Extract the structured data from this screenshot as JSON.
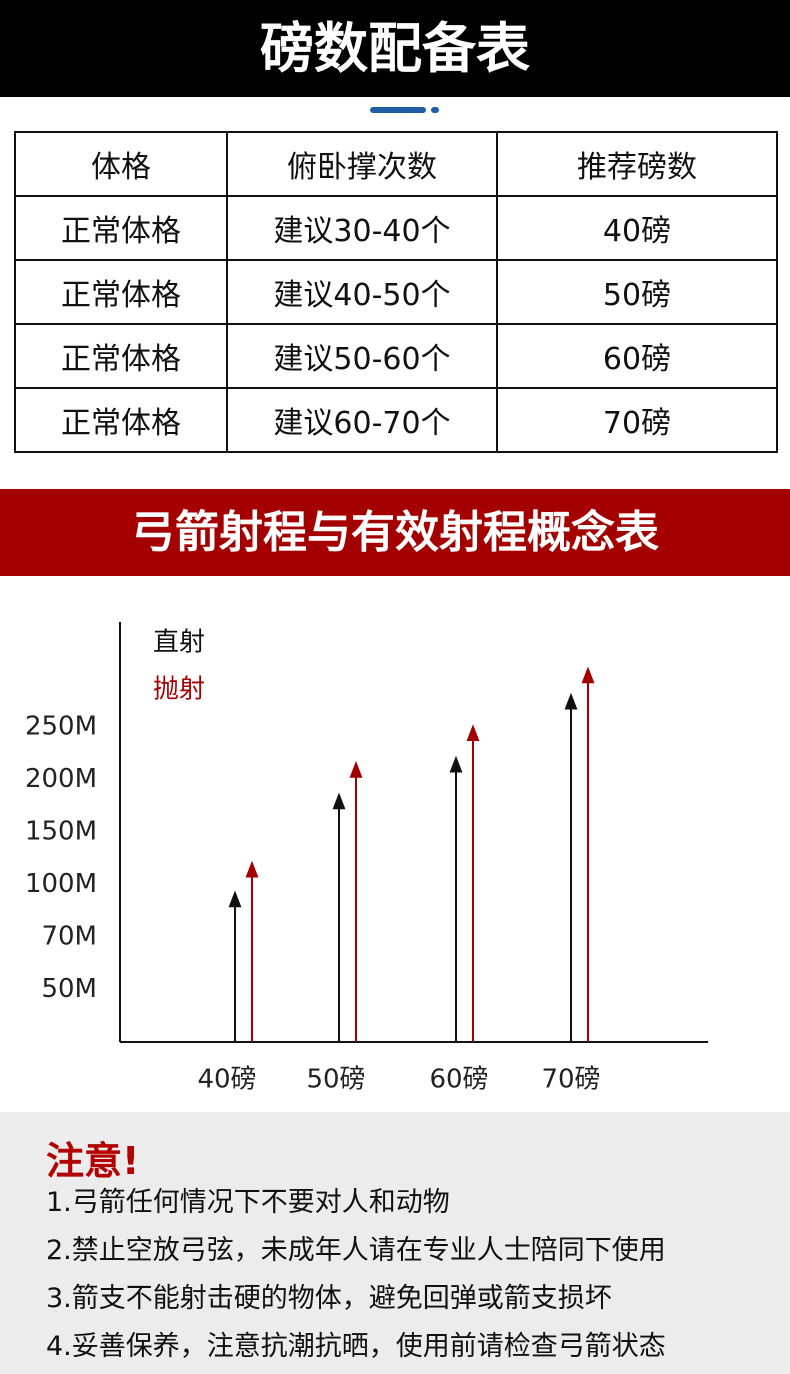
{
  "header": {
    "title": "磅数配备表"
  },
  "table": {
    "columns": [
      "体格",
      "俯卧撑次数",
      "推荐磅数"
    ],
    "rows": [
      [
        "正常体格",
        "建议30-40个",
        "40磅"
      ],
      [
        "正常体格",
        "建议40-50个",
        "50磅"
      ],
      [
        "正常体格",
        "建议50-60个",
        "60磅"
      ],
      [
        "正常体格",
        "建议60-70个",
        "70磅"
      ]
    ]
  },
  "chart_section": {
    "title": "弓箭射程与有效射程概念表"
  },
  "chart_data": {
    "type": "arrow",
    "categories": [
      "40磅",
      "50磅",
      "60磅",
      "70磅"
    ],
    "series": [
      {
        "name": "直射",
        "color": "#111111",
        "values": [
          95,
          185,
          220,
          280
        ]
      },
      {
        "name": "抛射",
        "color": "#a50000",
        "values": [
          120,
          215,
          250,
          305
        ]
      }
    ],
    "ylim": [
      0,
      350
    ],
    "yticks": [
      {
        "value": 50,
        "label": "50M"
      },
      {
        "value": 70,
        "label": "70M"
      },
      {
        "value": 100,
        "label": "100M"
      },
      {
        "value": 150,
        "label": "150M"
      },
      {
        "value": 200,
        "label": "200M"
      },
      {
        "value": 250,
        "label": "250M"
      }
    ]
  },
  "notice": {
    "title": "注意!",
    "items": [
      "1.弓箭任何情况下不要对人和动物",
      "2.禁止空放弓弦，未成年人请在专业人士陪同下使用",
      "3.箭支不能射击硬的物体，避免回弹或箭支损坏",
      "4.妥善保养，注意抗潮抗晒，使用前请检查弓箭状态"
    ]
  }
}
